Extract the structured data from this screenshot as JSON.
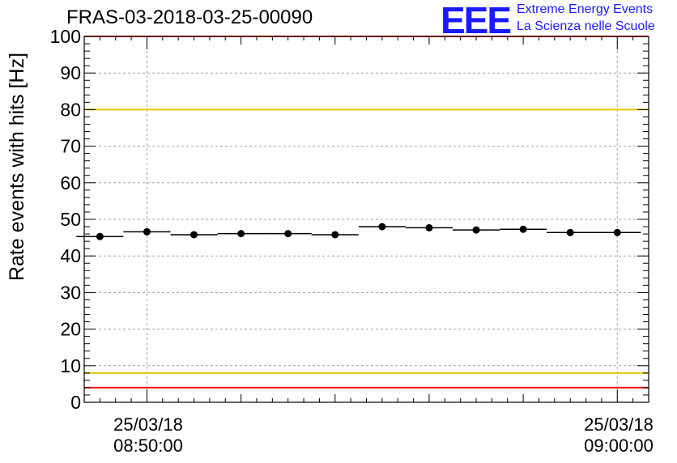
{
  "header": {
    "title": "FRAS-03-2018-03-25-00090",
    "logo_text": "EEE",
    "logo_line1": "Extreme Energy Events",
    "logo_line2": "La Scienza nelle Scuole"
  },
  "chart_data": {
    "type": "scatter",
    "title": "FRAS-03-2018-03-25-00090",
    "ylabel": "Rate events with hits [Hz]",
    "xlabel": "",
    "ylim": [
      0,
      100
    ],
    "yticks": [
      0,
      10,
      20,
      30,
      40,
      50,
      60,
      70,
      80,
      90,
      100
    ],
    "xlim": [
      "25/03/18 08:48:40",
      "25/03/18 09:00:40"
    ],
    "xticks": [
      {
        "x": "25/03/18 08:50:00",
        "date": "25/03/18",
        "time": "08:50:00"
      },
      {
        "x": "25/03/18 09:00:00",
        "date": "25/03/18",
        "time": "09:00:00"
      }
    ],
    "grid": true,
    "series": [
      {
        "x": [
          "08:49:00",
          "08:50:00",
          "08:51:00",
          "08:52:00",
          "08:53:00",
          "08:54:00",
          "08:55:00",
          "08:56:00",
          "08:57:00",
          "08:58:00",
          "08:59:00",
          "09:00:00"
        ],
        "values": [
          45.3,
          46.6,
          45.8,
          46.1,
          46.1,
          45.8,
          48.0,
          47.7,
          47.1,
          47.3,
          46.4,
          46.4
        ],
        "bin_width_minutes": 1,
        "color": "#000000"
      }
    ],
    "reference_lines": [
      {
        "y": 100,
        "color": "#ff0000"
      },
      {
        "y": 80,
        "color": "#e6c800"
      },
      {
        "y": 8,
        "color": "#e6c800"
      },
      {
        "y": 4,
        "color": "#ff0000"
      }
    ]
  }
}
